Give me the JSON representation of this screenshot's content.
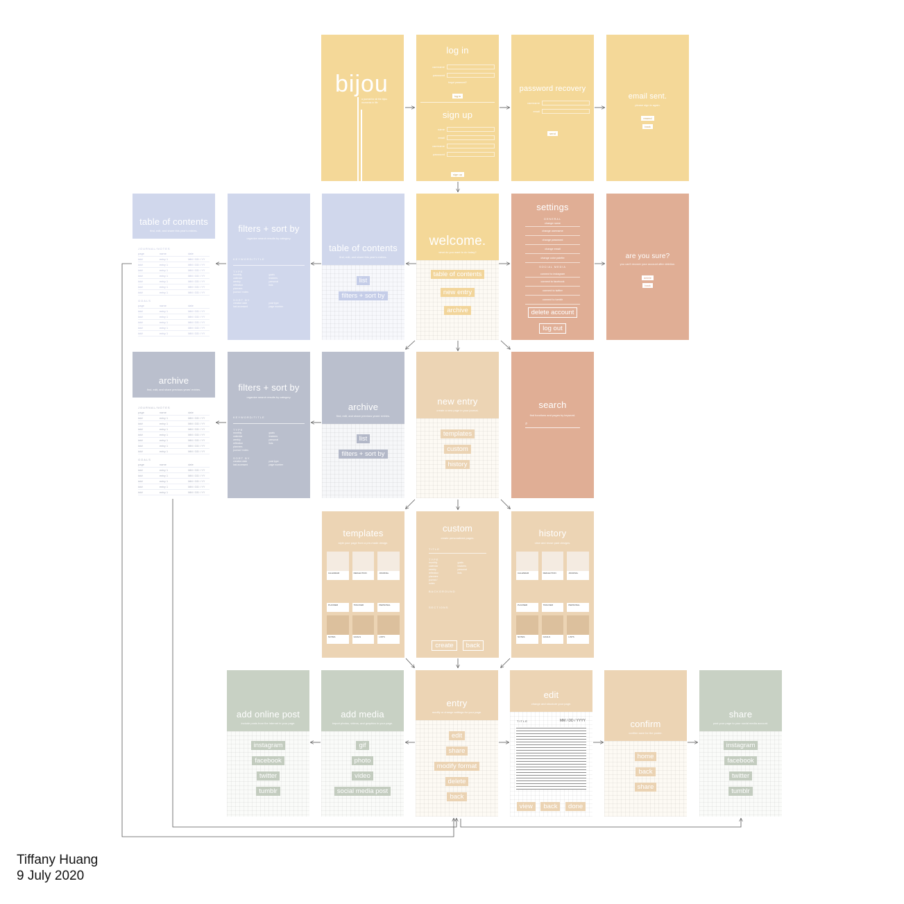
{
  "author": {
    "name": "Tiffany Huang",
    "date": "9 July 2020"
  },
  "colors": {
    "yellow": "#f4d898",
    "lavender": "#d0d7ec",
    "slate": "#babfcd",
    "terracotta": "#e0ae95",
    "tan": "#ecd4b4",
    "sage": "#c8d1c4",
    "grid_bg": "#fdfaf4"
  },
  "screens": {
    "bijou": {
      "title": "bijou",
      "subtitle": "a journal for all the bijou moments in life"
    },
    "login": {
      "title": "log in",
      "fields": [
        "username",
        "password"
      ],
      "forgot": "forgot password?",
      "button": "log in",
      "signup_title": "sign up",
      "signup_fields": [
        "name",
        "email",
        "username",
        "password"
      ],
      "signup_button": "sign up"
    },
    "recovery": {
      "title": "password recovery",
      "fields": [
        "username",
        "email"
      ],
      "button": "send"
    },
    "email_sent": {
      "title": "email sent.",
      "subtitle": "please sign in again.",
      "buttons": [
        "resend",
        "back"
      ]
    },
    "toc_page": {
      "title": "table of contents",
      "subtitle": "find, edit, and share this year's entries.",
      "section1": "JOURNAL/NOTES",
      "section2": "GOALS",
      "columns": [
        "page",
        "name",
        "date"
      ],
      "row": [
        "###",
        "entry 1",
        "MM / DD / YY"
      ]
    },
    "filters_toc": {
      "title": "filters + sort by",
      "subtitle": "organize search results by category.",
      "keyword": "KEYWORD/TITLE",
      "type": "TYPE",
      "type_items_left": [
        "monthly calendar",
        "weekly reflection",
        "planners",
        "journal / notes"
      ],
      "type_items_right": [
        "goals",
        "trackers",
        "personal",
        "lists"
      ],
      "sort": "SORT BY",
      "sort_left": [
        "creation date",
        "last accessed"
      ],
      "sort_right": [
        "post type",
        "page number"
      ]
    },
    "toc_menu": {
      "title": "table of contents",
      "subtitle": "find, edit, and share this year's entries.",
      "buttons": [
        "list",
        "filters + sort by"
      ]
    },
    "welcome": {
      "title": "welcome.",
      "subtitle": "what do you want to do today?",
      "buttons": [
        "table of contents",
        "new entry",
        "archive"
      ]
    },
    "settings": {
      "title": "settings",
      "general": "GENERAL",
      "general_items": [
        "change name",
        "change username",
        "change password",
        "change email",
        "change color palette"
      ],
      "social": "SOCIAL MEDIA",
      "social_items": [
        "connect to instagram",
        "connect to facebook",
        "connect to twitter",
        "connect to tumblr"
      ],
      "buttons": [
        "delete account",
        "log out"
      ]
    },
    "are_you_sure": {
      "title": "are you sure?",
      "subtitle": "you can't recover your account after deletion.",
      "buttons": [
        "delete",
        "back"
      ]
    },
    "archive_page": {
      "title": "archive",
      "subtitle": "find, edit, and share previous years' entries."
    },
    "filters_archive": {
      "title": "filters + sort by",
      "subtitle": "organize search results by category."
    },
    "archive_menu": {
      "title": "archive",
      "subtitle": "find, edit, and share previous years' entries.",
      "buttons": [
        "list",
        "filters + sort by"
      ]
    },
    "new_entry": {
      "title": "new entry",
      "subtitle": "create a new page in your journal.",
      "buttons": [
        "templates",
        "custom",
        "history"
      ]
    },
    "search": {
      "title": "search",
      "subtitle": "find functions and pages by keyword."
    },
    "templates": {
      "title": "templates",
      "subtitle": "style your page from a pre-made design.",
      "tiles": [
        "CALENDAR",
        "REFLECTION",
        "JOURNAL",
        "PLANNER",
        "TRACKER",
        "PERSONAL",
        "NOTES",
        "GOALS",
        "LISTS"
      ]
    },
    "custom": {
      "title": "custom",
      "subtitle": "create personalized pages.",
      "labels": [
        "TITLE",
        "TYPE",
        "BACKGROUND",
        "SECTIONS"
      ],
      "buttons": [
        "create",
        "back"
      ]
    },
    "history": {
      "title": "history",
      "subtitle": "view and reuse past designs.",
      "tiles": [
        "CALENDAR",
        "REFLECTION",
        "JOURNAL",
        "PLANNER",
        "TRACKER",
        "PERSONAL",
        "NOTES",
        "GOALS",
        "LISTS"
      ]
    },
    "add_online_post": {
      "title": "add online post",
      "subtitle": "include posts from the internet in your page.",
      "buttons": [
        "instagram",
        "facebook",
        "twitter",
        "tumblr"
      ]
    },
    "add_media": {
      "title": "add media",
      "subtitle": "import photos, videos, and graphics in your page.",
      "buttons": [
        "gif",
        "photo",
        "video",
        "social media post"
      ]
    },
    "entry": {
      "title": "entry",
      "subtitle": "modify or change settings for your page.",
      "buttons": [
        "edit",
        "share",
        "modify format",
        "delete",
        "back"
      ]
    },
    "edit": {
      "title": "edit",
      "subtitle": "change and structure your page.",
      "title_label": "TITLE",
      "date": "MM / DD / YYYY",
      "buttons": [
        "view",
        "back",
        "done"
      ]
    },
    "confirm": {
      "title": "confirm",
      "subtitle": "confirm save for the poster.",
      "buttons": [
        "home",
        "back",
        "share"
      ]
    },
    "share": {
      "title": "share",
      "subtitle": "post your page to your social media account.",
      "buttons": [
        "instagram",
        "facebook",
        "twitter",
        "tumblr"
      ]
    }
  }
}
